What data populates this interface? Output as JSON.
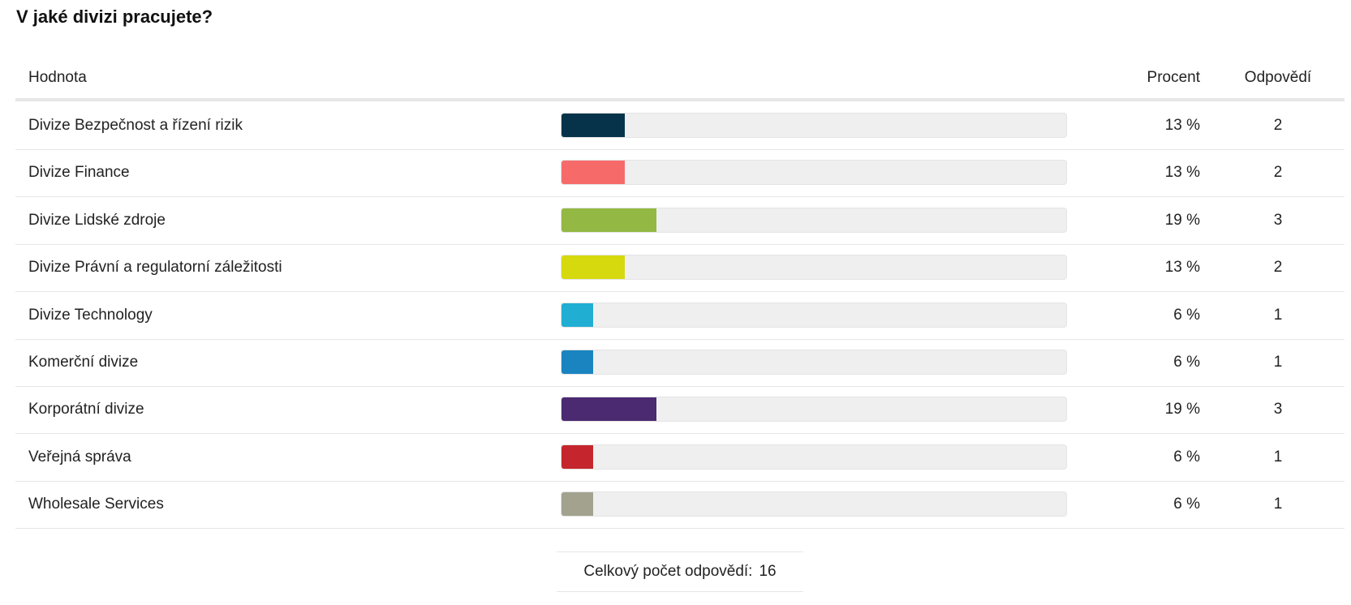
{
  "title": "V jaké divizi pracujete?",
  "table": {
    "headers": {
      "value": "Hodnota",
      "percent": "Procent",
      "count": "Odpovědí"
    },
    "rows": [
      {
        "label": "Divize Bezpečnost a řízení rizik",
        "color": "#06334a",
        "percent": "13 %",
        "count": 2
      },
      {
        "label": "Divize Finance",
        "color": "#f76a6a",
        "percent": "13 %",
        "count": 2
      },
      {
        "label": "Divize Lidské zdroje",
        "color": "#93b843",
        "percent": "19 %",
        "count": 3
      },
      {
        "label": "Divize Právní a regulatorní záležitosti",
        "color": "#d7d90f",
        "percent": "13 %",
        "count": 2
      },
      {
        "label": "Divize Technology",
        "color": "#20aed3",
        "percent": "6 %",
        "count": 1
      },
      {
        "label": "Komerční divize",
        "color": "#1a84c0",
        "percent": "6 %",
        "count": 1
      },
      {
        "label": "Korporátní divize",
        "color": "#4b2a72",
        "percent": "19 %",
        "count": 3
      },
      {
        "label": "Veřejná správa",
        "color": "#c5262d",
        "percent": "6 %",
        "count": 1
      },
      {
        "label": "Wholesale Services",
        "color": "#a3a28f",
        "percent": "6 %",
        "count": 1
      }
    ],
    "total": {
      "label": "Celkový počet odpovědí:",
      "value": 16
    }
  }
}
